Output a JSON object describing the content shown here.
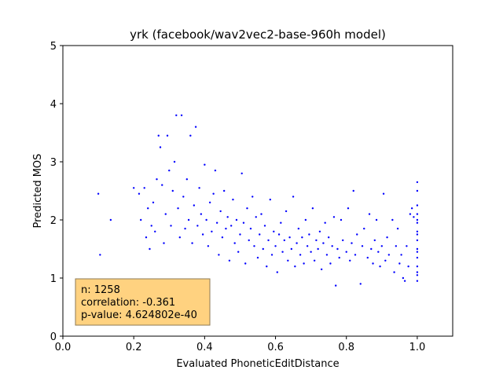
{
  "chart_data": {
    "type": "scatter",
    "title": "yrk (facebook/wav2vec2-base-960h model)",
    "xlabel": "Evaluated PhoneticEditDistance",
    "ylabel": "Predicted MOS",
    "xlim": [
      0.0,
      1.1
    ],
    "ylim": [
      0,
      5
    ],
    "xticks": [
      0.0,
      0.2,
      0.4,
      0.6,
      0.8,
      1.0
    ],
    "xtick_labels": [
      "0.0",
      "0.2",
      "0.4",
      "0.6",
      "0.8",
      "1.0"
    ],
    "yticks": [
      0,
      1,
      2,
      3,
      4,
      5
    ],
    "ytick_labels": [
      "0",
      "1",
      "2",
      "3",
      "4",
      "5"
    ],
    "grid": false,
    "marker_color": "#0000ff",
    "series": [
      {
        "points": [
          [
            0.1,
            2.45
          ],
          [
            0.105,
            1.4
          ],
          [
            0.135,
            2.0
          ],
          [
            0.2,
            2.55
          ],
          [
            0.215,
            2.45
          ],
          [
            0.22,
            2.0
          ],
          [
            0.23,
            2.55
          ],
          [
            0.235,
            1.7
          ],
          [
            0.24,
            2.2
          ],
          [
            0.245,
            1.5
          ],
          [
            0.25,
            1.9
          ],
          [
            0.255,
            2.3
          ],
          [
            0.26,
            1.8
          ],
          [
            0.265,
            2.7
          ],
          [
            0.27,
            3.45
          ],
          [
            0.275,
            3.25
          ],
          [
            0.28,
            2.6
          ],
          [
            0.285,
            1.6
          ],
          [
            0.29,
            2.1
          ],
          [
            0.295,
            3.45
          ],
          [
            0.3,
            2.85
          ],
          [
            0.305,
            1.9
          ],
          [
            0.31,
            2.5
          ],
          [
            0.315,
            3.0
          ],
          [
            0.32,
            3.8
          ],
          [
            0.325,
            2.2
          ],
          [
            0.33,
            1.7
          ],
          [
            0.335,
            3.8
          ],
          [
            0.34,
            2.4
          ],
          [
            0.345,
            1.85
          ],
          [
            0.35,
            2.7
          ],
          [
            0.355,
            2.0
          ],
          [
            0.36,
            3.45
          ],
          [
            0.365,
            1.6
          ],
          [
            0.37,
            2.25
          ],
          [
            0.375,
            3.6
          ],
          [
            0.38,
            1.9
          ],
          [
            0.385,
            2.55
          ],
          [
            0.39,
            2.1
          ],
          [
            0.395,
            1.75
          ],
          [
            0.4,
            2.95
          ],
          [
            0.405,
            2.0
          ],
          [
            0.41,
            1.55
          ],
          [
            0.415,
            2.3
          ],
          [
            0.42,
            1.8
          ],
          [
            0.425,
            2.45
          ],
          [
            0.43,
            2.85
          ],
          [
            0.435,
            1.95
          ],
          [
            0.44,
            1.4
          ],
          [
            0.445,
            2.15
          ],
          [
            0.45,
            1.7
          ],
          [
            0.455,
            2.5
          ],
          [
            0.46,
            1.85
          ],
          [
            0.465,
            2.05
          ],
          [
            0.47,
            1.3
          ],
          [
            0.475,
            1.9
          ],
          [
            0.48,
            2.35
          ],
          [
            0.485,
            1.6
          ],
          [
            0.49,
            2.0
          ],
          [
            0.495,
            1.45
          ],
          [
            0.5,
            1.75
          ],
          [
            0.505,
            2.8
          ],
          [
            0.51,
            1.95
          ],
          [
            0.515,
            1.25
          ],
          [
            0.52,
            2.2
          ],
          [
            0.525,
            1.65
          ],
          [
            0.53,
            1.85
          ],
          [
            0.535,
            2.4
          ],
          [
            0.54,
            1.55
          ],
          [
            0.545,
            2.05
          ],
          [
            0.55,
            1.35
          ],
          [
            0.555,
            1.75
          ],
          [
            0.56,
            2.1
          ],
          [
            0.565,
            1.5
          ],
          [
            0.57,
            1.9
          ],
          [
            0.575,
            1.2
          ],
          [
            0.58,
            1.65
          ],
          [
            0.585,
            2.35
          ],
          [
            0.59,
            1.4
          ],
          [
            0.595,
            1.8
          ],
          [
            0.6,
            1.55
          ],
          [
            0.605,
            1.1
          ],
          [
            0.61,
            1.75
          ],
          [
            0.615,
            1.95
          ],
          [
            0.62,
            1.45
          ],
          [
            0.625,
            1.65
          ],
          [
            0.63,
            2.15
          ],
          [
            0.635,
            1.3
          ],
          [
            0.64,
            1.7
          ],
          [
            0.645,
            1.5
          ],
          [
            0.65,
            2.4
          ],
          [
            0.655,
            1.2
          ],
          [
            0.66,
            1.6
          ],
          [
            0.665,
            1.85
          ],
          [
            0.67,
            1.4
          ],
          [
            0.675,
            1.7
          ],
          [
            0.68,
            1.25
          ],
          [
            0.685,
            2.0
          ],
          [
            0.69,
            1.55
          ],
          [
            0.695,
            1.75
          ],
          [
            0.7,
            1.45
          ],
          [
            0.705,
            2.2
          ],
          [
            0.71,
            1.3
          ],
          [
            0.715,
            1.65
          ],
          [
            0.72,
            1.5
          ],
          [
            0.725,
            1.8
          ],
          [
            0.73,
            1.15
          ],
          [
            0.735,
            1.6
          ],
          [
            0.74,
            1.95
          ],
          [
            0.745,
            1.4
          ],
          [
            0.75,
            1.7
          ],
          [
            0.755,
            1.25
          ],
          [
            0.76,
            1.55
          ],
          [
            0.765,
            2.05
          ],
          [
            0.77,
            0.87
          ],
          [
            0.775,
            1.5
          ],
          [
            0.78,
            1.35
          ],
          [
            0.785,
            2.0
          ],
          [
            0.79,
            1.65
          ],
          [
            0.8,
            1.45
          ],
          [
            0.805,
            2.2
          ],
          [
            0.81,
            1.3
          ],
          [
            0.815,
            1.6
          ],
          [
            0.82,
            2.5
          ],
          [
            0.825,
            1.4
          ],
          [
            0.83,
            1.75
          ],
          [
            0.84,
            0.9
          ],
          [
            0.845,
            1.55
          ],
          [
            0.85,
            1.85
          ],
          [
            0.86,
            1.35
          ],
          [
            0.865,
            2.1
          ],
          [
            0.87,
            1.5
          ],
          [
            0.875,
            1.25
          ],
          [
            0.88,
            1.65
          ],
          [
            0.885,
            2.0
          ],
          [
            0.89,
            1.45
          ],
          [
            0.895,
            1.2
          ],
          [
            0.9,
            1.55
          ],
          [
            0.905,
            2.45
          ],
          [
            0.91,
            1.3
          ],
          [
            0.915,
            1.7
          ],
          [
            0.92,
            1.4
          ],
          [
            0.93,
            2.0
          ],
          [
            0.935,
            1.1
          ],
          [
            0.94,
            1.55
          ],
          [
            0.945,
            1.85
          ],
          [
            0.95,
            1.25
          ],
          [
            0.955,
            1.4
          ],
          [
            0.96,
            1.0
          ],
          [
            0.965,
            0.95
          ],
          [
            0.97,
            1.55
          ],
          [
            0.975,
            1.2
          ],
          [
            0.98,
            2.1
          ],
          [
            0.985,
            2.2
          ],
          [
            0.99,
            2.05
          ],
          [
            1.0,
            0.95
          ],
          [
            1.0,
            1.05
          ],
          [
            1.0,
            1.2
          ],
          [
            1.0,
            1.35
          ],
          [
            1.0,
            1.5
          ],
          [
            1.0,
            1.65
          ],
          [
            1.0,
            1.8
          ],
          [
            1.0,
            1.95
          ],
          [
            1.0,
            2.1
          ],
          [
            1.0,
            2.25
          ],
          [
            1.0,
            2.5
          ],
          [
            1.0,
            2.65
          ],
          [
            1.0,
            1.1
          ],
          [
            1.0,
            1.45
          ],
          [
            1.0,
            1.75
          ],
          [
            1.0,
            2.0
          ]
        ]
      }
    ],
    "annotation": {
      "lines": [
        "n: 1258",
        "correlation: -0.361",
        "p-value: 4.624802e-40"
      ],
      "fill": "#ffd280",
      "edge": "#8c7a55"
    }
  }
}
